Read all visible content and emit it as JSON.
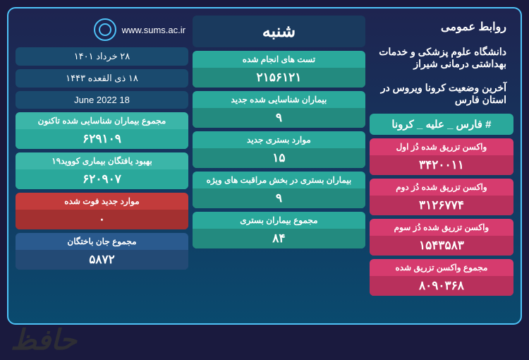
{
  "header": {
    "pr": "روابط عمومی",
    "university": "دانشگاه علوم پزشکی و خدمات بهداشتی درمانی شیراز",
    "status": "آخرین وضعیت کرونا ویروس در استان فارس",
    "hashtag": "# فارس _ علیه _ کرونا",
    "url": "www.sums.ac.ir"
  },
  "dates": {
    "day_title": "شنبه",
    "persian": "۲۸ خرداد ۱۴۰۱",
    "hijri": "۱۸ ذی القعده ۱۴۴۳",
    "gregorian": "18 June 2022"
  },
  "vaccines": {
    "dose1_label": "واکسن تزریق شده دُز اول",
    "dose1_value": "۳۴۲۰۰۱۱",
    "dose2_label": "واکسن تزریق شده دُز دوم",
    "dose2_value": "۳۱۲۶۷۷۴",
    "dose3_label": "واکسن تزریق شده دُز سوم",
    "dose3_value": "۱۵۴۳۵۸۳",
    "total_label": "مجموع واکسن تزریق شده",
    "total_value": "۸۰۹۰۳۶۸"
  },
  "stats_center": {
    "tests_label": "تست های انجام شده",
    "tests_value": "۲۱۵۶۱۲۱",
    "new_cases_label": "بیماران شناسایی شده جدید",
    "new_cases_value": "۹",
    "new_hosp_label": "موارد بستری جدید",
    "new_hosp_value": "۱۵",
    "icu_label": "بیماران بستری در بخش مراقبت های ویژه",
    "icu_value": "۹",
    "total_hosp_label": "مجموع بیماران بستری",
    "total_hosp_value": "۸۴"
  },
  "stats_left": {
    "total_cases_label": "مجموع بیماران شناسایی شده تاکنون",
    "total_cases_value": "۶۲۹۱۰۹",
    "recovered_label": "بهبود یافتگان بیماری کووید۱۹",
    "recovered_value": "۶۲۰۹۰۷",
    "new_deaths_label": "موارد جدید فوت شده",
    "new_deaths_value": "۰",
    "total_deaths_label": "مجموع جان باختگان",
    "total_deaths_value": "۵۸۷۲"
  },
  "watermark": "حافظ"
}
